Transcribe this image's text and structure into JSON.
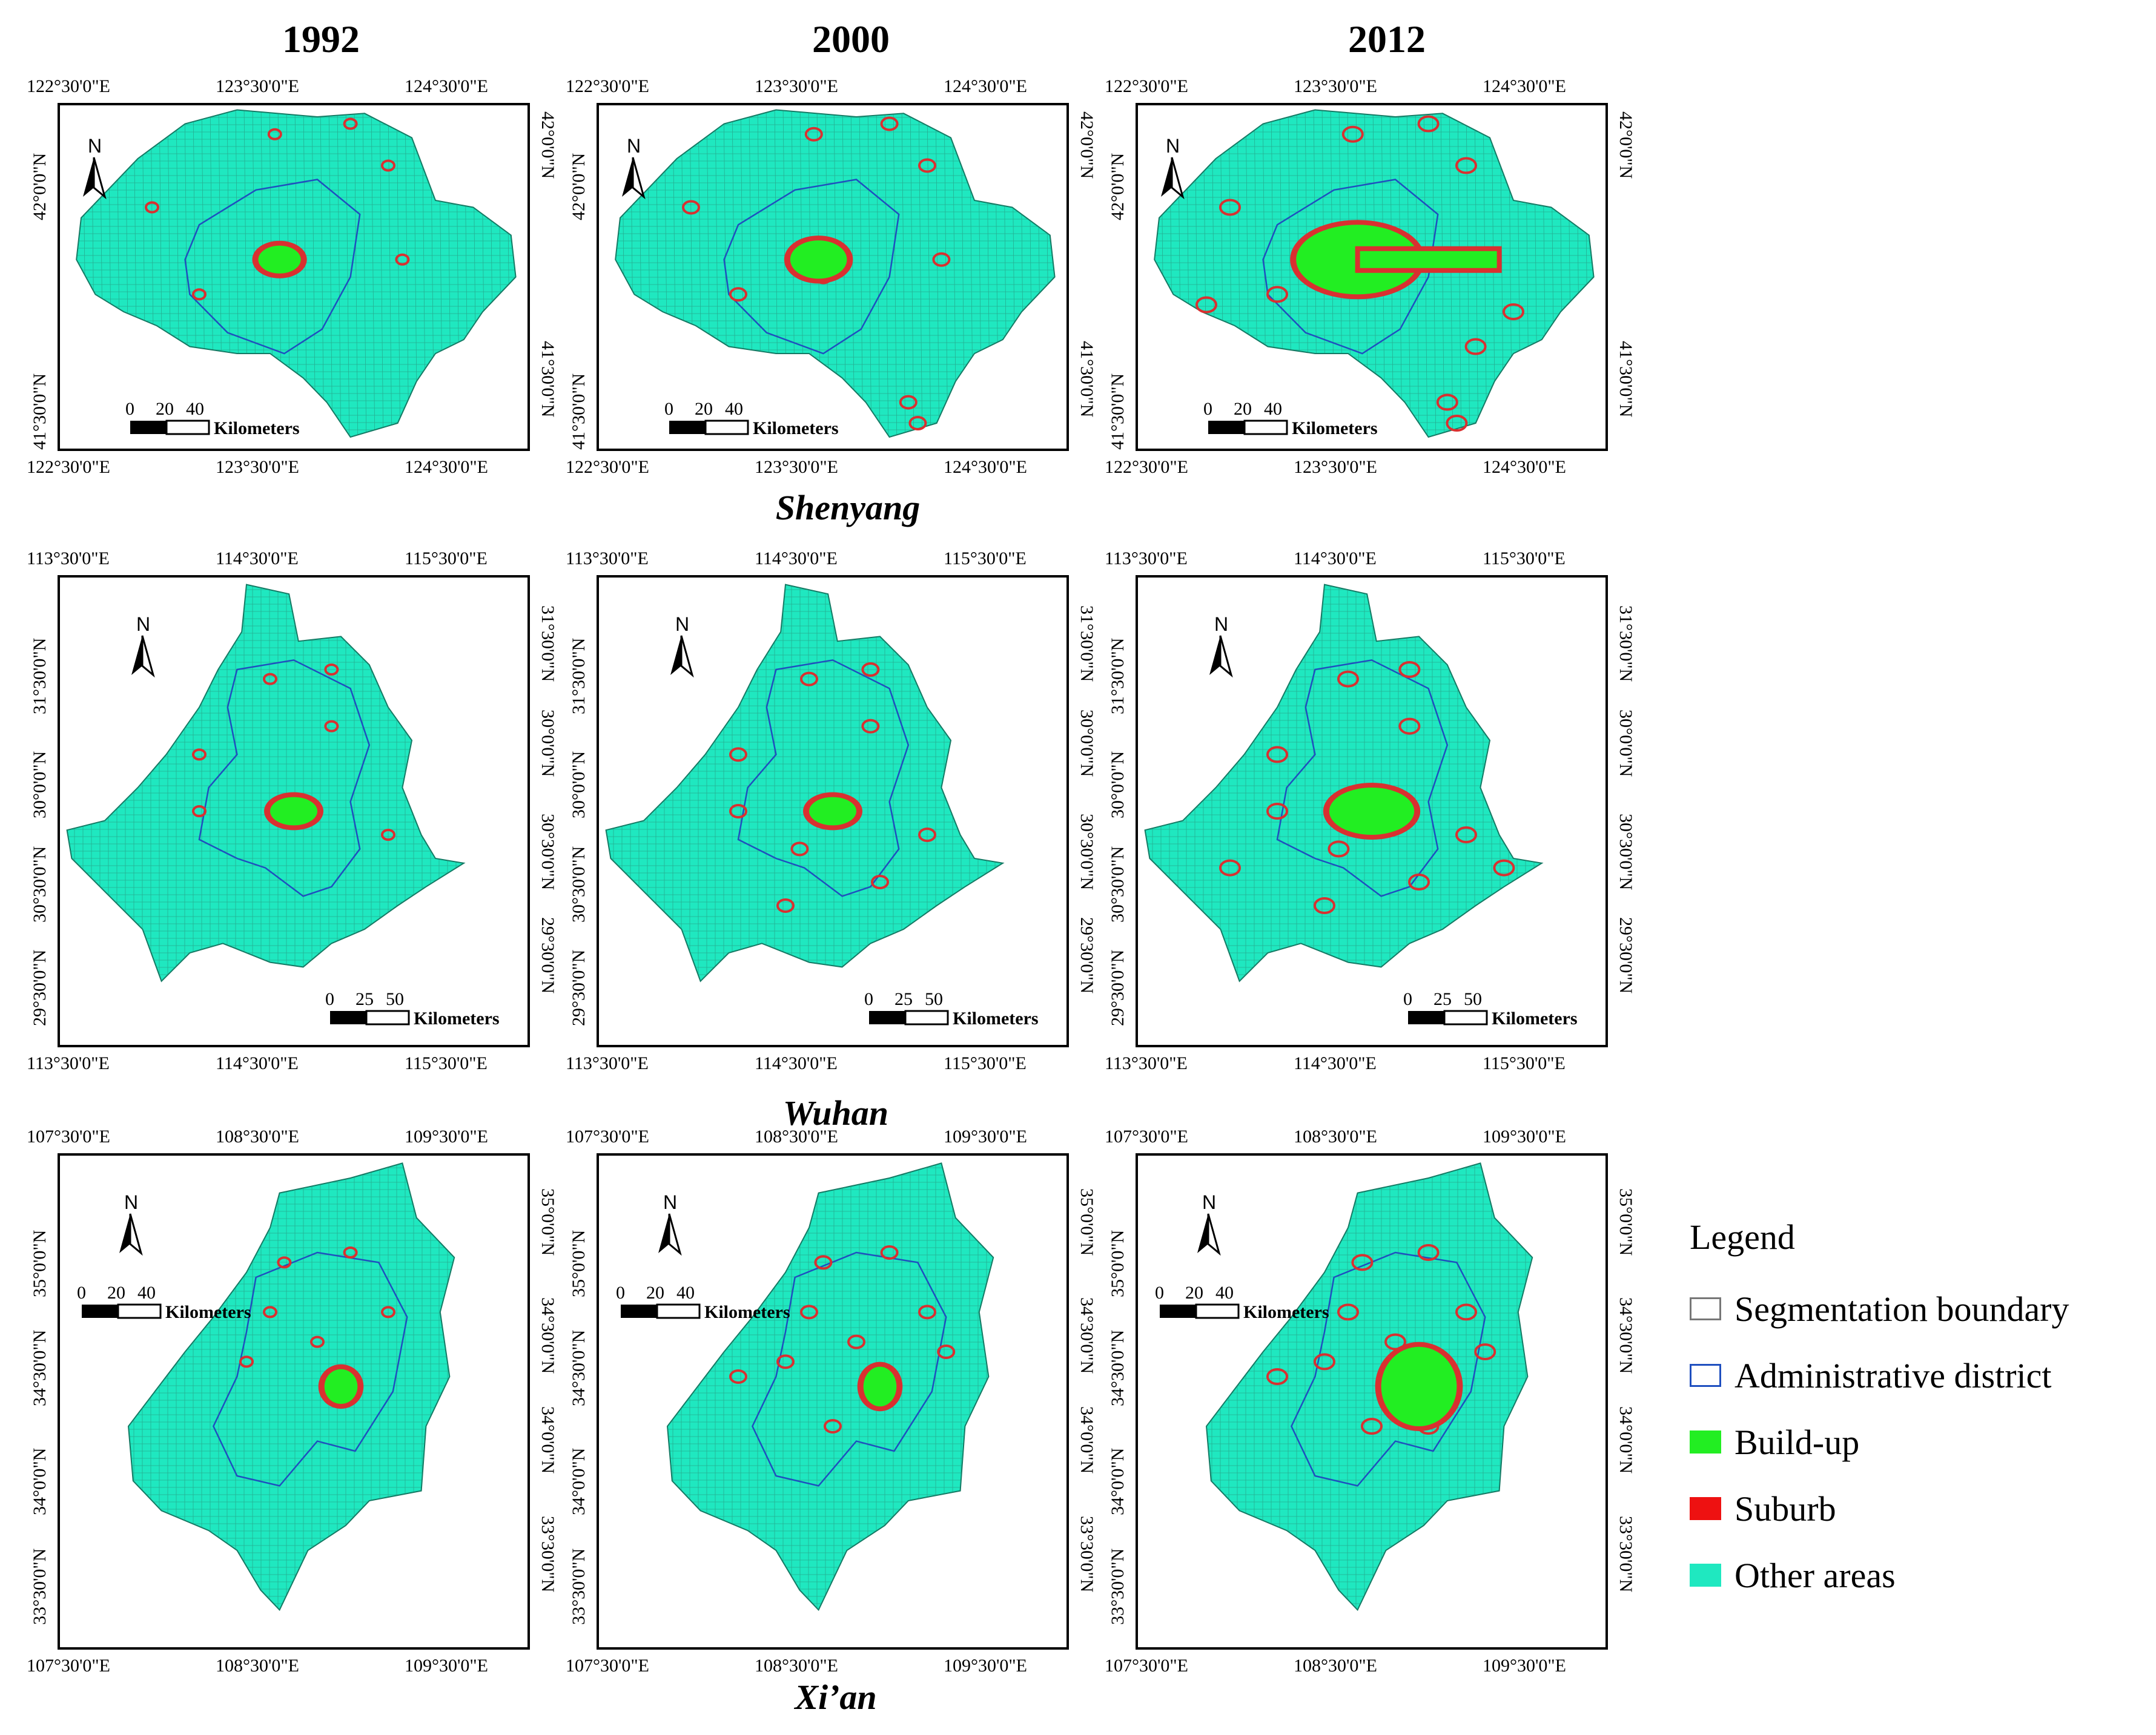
{
  "years": [
    "1992",
    "2000",
    "2012"
  ],
  "cities": [
    {
      "name": "Shenyang",
      "lon_ticks": [
        "122°30'0\"E",
        "123°30'0\"E",
        "124°30'0\"E"
      ],
      "lat_ticks": [
        "42°0'0\"N",
        "41°30'0\"N"
      ],
      "scale_numbers": [
        "0",
        "20",
        "40"
      ],
      "scale_unit": "Kilometers"
    },
    {
      "name": "Wuhan",
      "lon_ticks_top": [
        "113°30'0\"E",
        "114°30'0\"E",
        "115°30'0\"E"
      ],
      "lon_ticks_bottom": [
        "113°30'0\"E",
        "114°30'0\"E",
        "115°30'0\"E"
      ],
      "lat_ticks": [
        "31°30'0\"N",
        "30°0'0\"N",
        "30°30'0\"N",
        "29°30'0\"N"
      ],
      "scale_numbers": [
        "0",
        "25",
        "50"
      ],
      "scale_unit": "Kilometers"
    },
    {
      "name": "Xi’an",
      "lon_ticks_top": [
        "107°30'0\"E",
        "108°30'0\"E",
        "109°30'0\"E"
      ],
      "lon_ticks_bottom": [
        "107°30'0\"E",
        "108°30'0\"E",
        "109°30'0\"E"
      ],
      "lat_ticks": [
        "35°0'0\"N",
        "34°30'0\"N",
        "34°0'0\"N",
        "33°30'0\"N"
      ],
      "scale_numbers": [
        "0",
        "20",
        "40"
      ],
      "scale_unit": "Kilometers"
    }
  ],
  "north_label": "N",
  "legend": {
    "title": "Legend",
    "items": [
      {
        "label": "Segmentation boundary",
        "color": "#ffffff",
        "border": "#777777"
      },
      {
        "label": "Administrative district",
        "color": "#ffffff",
        "border": "#1f4fbf"
      },
      {
        "label": "Build-up",
        "color": "#22ee22",
        "border": "#22ee22"
      },
      {
        "label": "Suburb",
        "color": "#ee1111",
        "border": "#ee1111"
      },
      {
        "label": "Other areas",
        "color": "#1fe8c0",
        "border": "#1fe8c0"
      }
    ]
  },
  "colors": {
    "other": "#1fe8c0",
    "buildup": "#22ee22",
    "suburb": "#d93030",
    "admin": "#1f4fbf",
    "segment": "#2a7f6a"
  }
}
